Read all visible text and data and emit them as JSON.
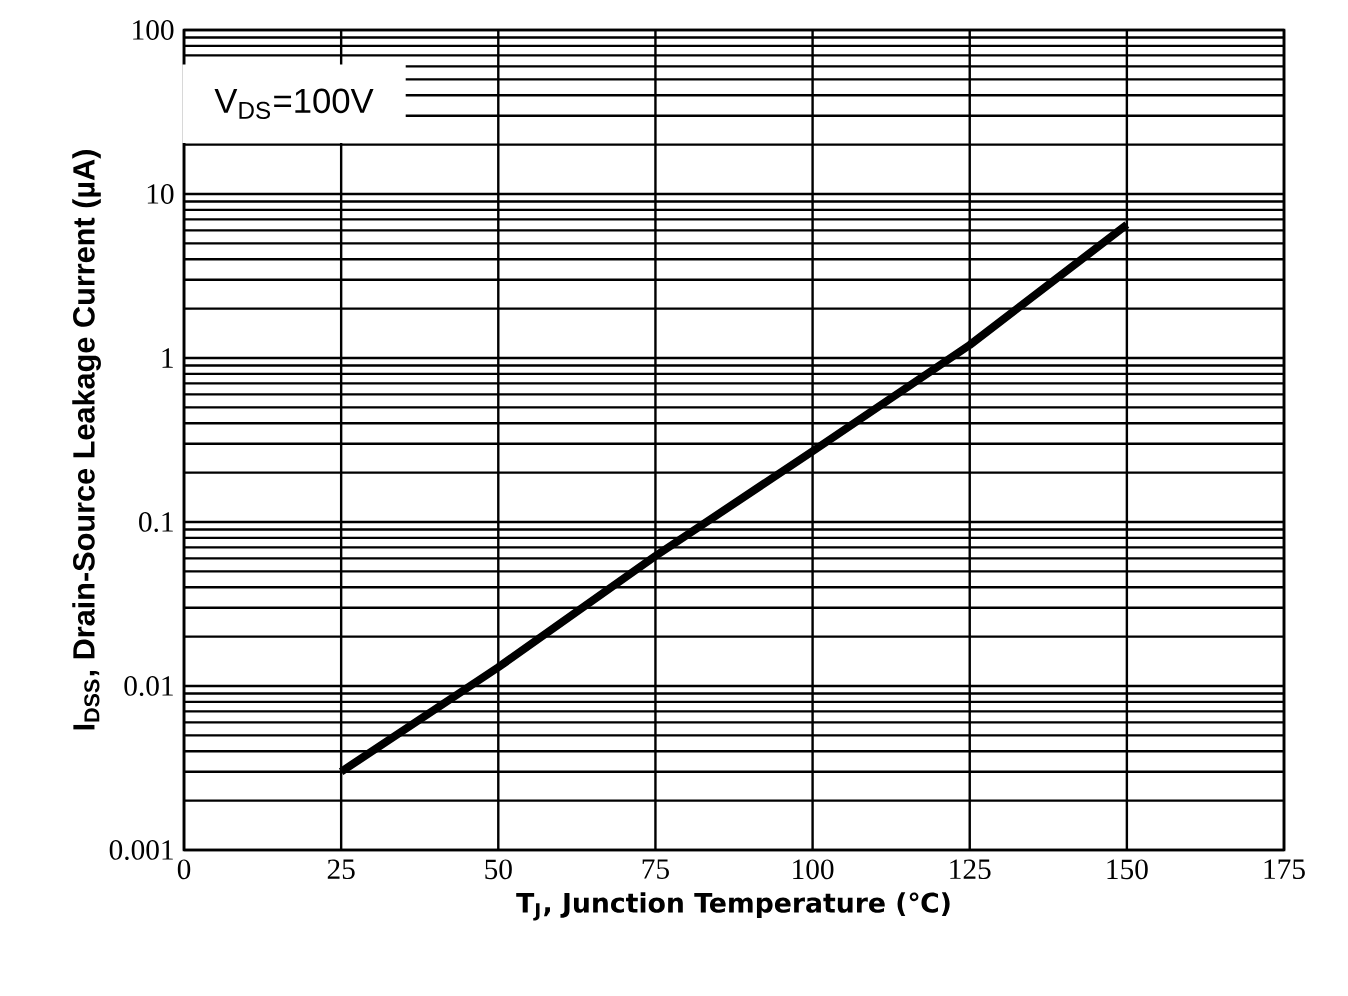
{
  "chart_data": {
    "type": "line",
    "xlabel": "T$_{J}$, Junction Temperature (℃)",
    "ylabel": "I$_{DSS}$, Drain-Source Leakage Current (µA)",
    "annotations": [
      "V$_{DS}$=100V"
    ],
    "x": [
      25,
      50,
      75,
      100,
      125,
      150
    ],
    "series": [
      {
        "color": "#000000",
        "values": [
          0.003,
          0.013,
          0.062,
          0.27,
          1.2,
          6.5
        ]
      }
    ],
    "log": "y",
    "grid": true,
    "marker": "none",
    "line_style": "solid",
    "xlim": [
      0,
      175
    ],
    "xticks": [
      0,
      25,
      50,
      75,
      100,
      125,
      150,
      175
    ],
    "ylim": [
      0.001,
      100
    ],
    "yticks": [
      0.001,
      0.01,
      0.1,
      1,
      10,
      100
    ]
  }
}
